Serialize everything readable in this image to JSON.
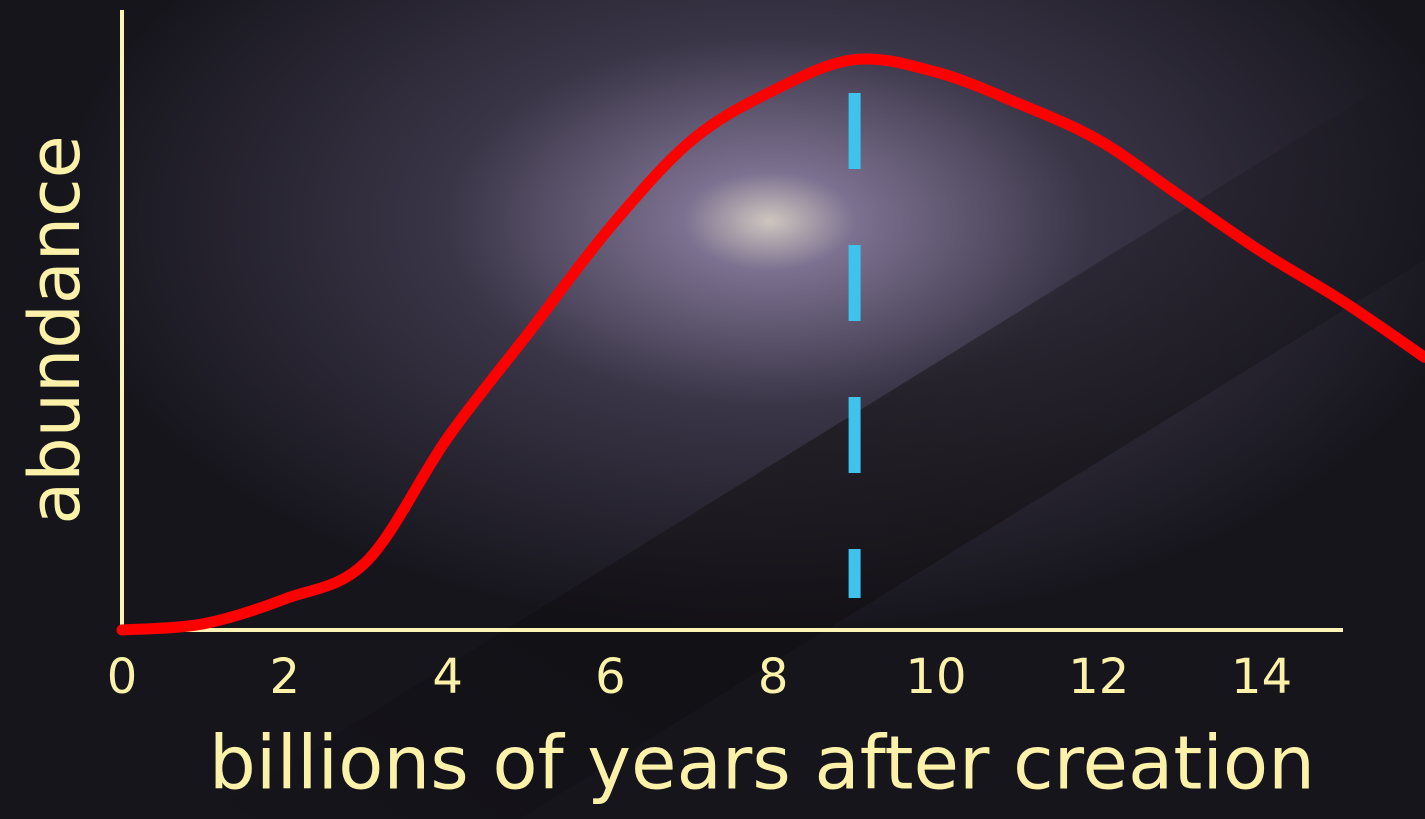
{
  "chart_data": {
    "type": "line",
    "xlabel": "billions of years after creation",
    "ylabel": "abundance",
    "x": [
      0,
      1,
      2,
      3,
      4,
      5,
      6,
      7,
      8,
      9,
      10,
      11,
      12,
      13,
      14,
      15,
      16
    ],
    "series": [
      {
        "color": "#ff0000",
        "values": [
          0,
          0.01,
          0.05,
          0.11,
          0.31,
          0.48,
          0.65,
          0.79,
          0.87,
          0.92,
          0.9,
          0.85,
          0.79,
          0.7,
          0.61,
          0.53,
          0.44
        ]
      }
    ],
    "vline": {
      "x": 9,
      "color": "#3fc3ec"
    },
    "xlim": [
      0,
      15
    ],
    "xticks": [
      0,
      2,
      4,
      6,
      8,
      10,
      12,
      14
    ],
    "ylim": [
      0,
      1
    ],
    "axis_color": "#fbf4b5"
  }
}
